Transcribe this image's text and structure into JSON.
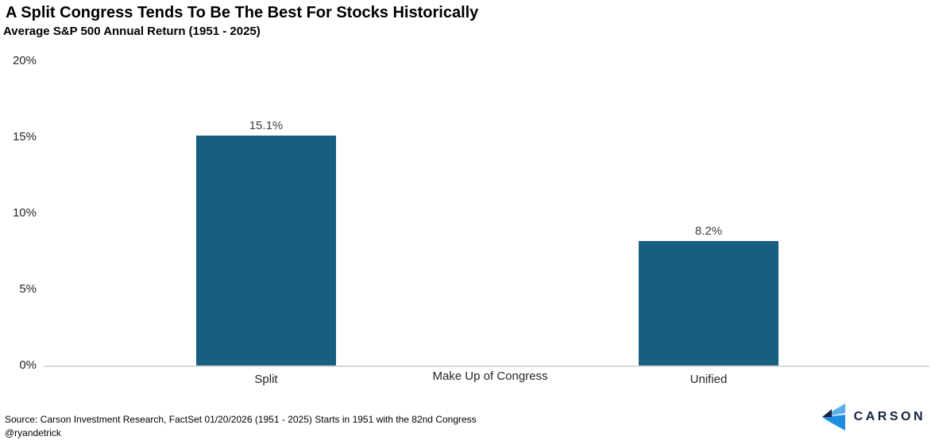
{
  "header": {
    "title": "A Split Congress Tends To Be The Best For Stocks Historically",
    "subtitle": "Average S&P 500 Annual Return (1951 - 2025)"
  },
  "chart_data": {
    "type": "bar",
    "categories": [
      "Split",
      "Unified"
    ],
    "values": [
      15.1,
      8.2
    ],
    "value_labels": [
      "15.1%",
      "8.2%"
    ],
    "title": "A Split Congress Tends To Be The Best For Stocks Historically",
    "subtitle": "Average S&P 500 Annual Return (1951 - 2025)",
    "xlabel": "Make Up of Congress",
    "ylabel": "",
    "ylim": [
      0,
      20
    ],
    "yticks": [
      0,
      5,
      10,
      15,
      20
    ],
    "ytick_labels": [
      "0%",
      "5%",
      "10%",
      "15%",
      "20%"
    ],
    "grid": false,
    "legend": "none",
    "bar_color": "#175F80"
  },
  "colors": {
    "bar": "#175F80",
    "axis_line": "#d9d9d9",
    "axis_text": "#262626",
    "data_label": "#404040",
    "logo_navy": "#152840",
    "logo_light_blue": "#58ade8",
    "logo_blue": "#1e8ee0"
  },
  "footer": {
    "source_line": "Source: Carson Investment Research, FactSet   01/20/2026  (1951 - 2025)  Starts in 1951 with the 82nd Congress",
    "handle": "@ryandetrick",
    "logo_text": "CARSON"
  }
}
